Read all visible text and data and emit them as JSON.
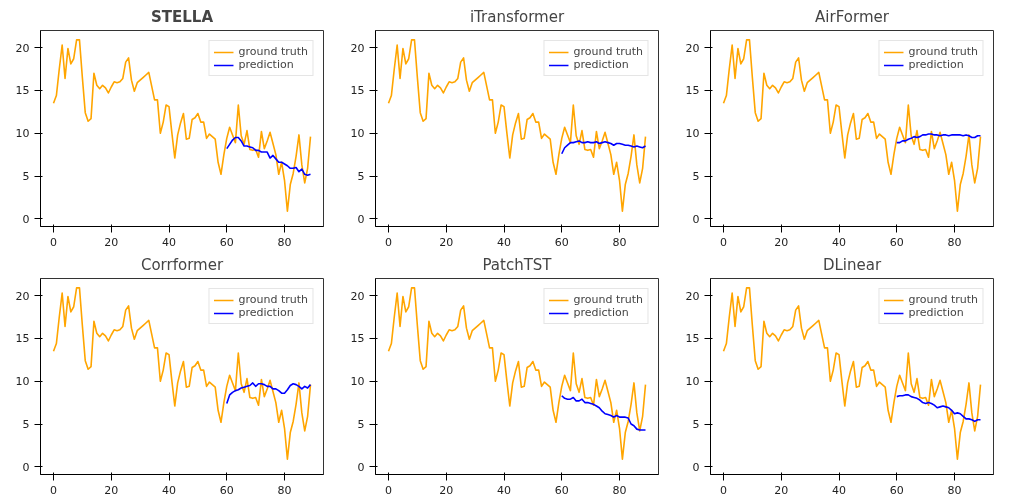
{
  "chart_data": [
    {
      "type": "line",
      "title": "STELLA",
      "xlim": [
        -4.5,
        93.5
      ],
      "ylim": [
        -0.9,
        22
      ],
      "xticks": [
        0,
        20,
        40,
        60,
        80
      ],
      "yticks": [
        0,
        5,
        10,
        15,
        20
      ],
      "grid": false,
      "legend": "top right",
      "series": [
        {
          "name": "ground truth",
          "color": "#ffa500",
          "x": [
            0,
            1,
            2,
            3,
            4,
            5,
            6,
            7,
            8,
            9,
            10,
            11,
            12,
            13,
            14,
            15,
            16,
            17,
            18,
            19,
            20,
            21,
            22,
            23,
            24,
            25,
            26,
            27,
            28,
            29,
            30,
            31,
            32,
            33,
            34,
            35,
            36,
            37,
            38,
            39,
            40,
            41,
            42,
            43,
            44,
            45,
            46,
            47,
            48,
            49,
            50,
            51,
            52,
            53,
            54,
            55,
            56,
            57,
            58,
            59,
            60,
            61,
            62,
            63,
            64,
            65,
            66,
            67,
            68,
            69,
            70,
            71,
            72,
            73,
            74,
            75,
            76,
            77,
            78,
            79,
            80,
            81,
            82,
            83,
            84,
            85,
            86,
            87,
            88,
            89
          ],
          "values": [
            13.5,
            14.4,
            17.5,
            20.3,
            16.4,
            19.9,
            18.1,
            18.7,
            20.9,
            20.9,
            16.5,
            12.4,
            11.4,
            11.7,
            17.0,
            15.6,
            15.2,
            15.6,
            15.3,
            14.7,
            15.4,
            16.0,
            15.9,
            16.0,
            16.4,
            18.3,
            18.8,
            16.2,
            14.9,
            15.9,
            16.2,
            16.5,
            16.8,
            17.1,
            15.5,
            13.9,
            13.9,
            10.0,
            11.3,
            13.3,
            13.1,
            10.0,
            7.1,
            9.8,
            11.2,
            12.3,
            9.3,
            9.4,
            11.6,
            11.8,
            12.3,
            11.3,
            11.3,
            9.4,
            9.9,
            9.6,
            9.3,
            6.6,
            5.2,
            7.5,
            9.4,
            10.7,
            9.8,
            8.9,
            13.3,
            9.7,
            8.7,
            10.3,
            8.1,
            8.0,
            8.1,
            7.2,
            10.2,
            8.2,
            9.1,
            10.1,
            8.8,
            7.5,
            5.2,
            6.6,
            4.5,
            0.9,
            4.0,
            5.3,
            7.3,
            9.8,
            6.3,
            4.2,
            5.9,
            9.6
          ]
        },
        {
          "name": "prediction",
          "color": "#0000ff",
          "x": [
            60,
            61,
            62,
            63,
            64,
            65,
            66,
            67,
            68,
            69,
            70,
            71,
            72,
            73,
            74,
            75,
            76,
            77,
            78,
            79,
            80,
            81,
            82,
            83,
            84,
            85,
            86,
            87,
            88,
            89
          ],
          "values": [
            8.2,
            8.7,
            9.2,
            9.5,
            9.5,
            9.1,
            8.5,
            8.5,
            8.4,
            8.3,
            8.0,
            8.0,
            7.8,
            7.8,
            7.8,
            7.1,
            7.4,
            7.0,
            6.6,
            6.6,
            6.4,
            6.2,
            5.9,
            5.9,
            6.0,
            5.5,
            5.8,
            5.2,
            5.1,
            5.2
          ]
        }
      ]
    },
    {
      "type": "line",
      "title": "iTransformer",
      "xlim": [
        -4.5,
        93.5
      ],
      "ylim": [
        -0.9,
        22
      ],
      "xticks": [
        0,
        20,
        40,
        60,
        80
      ],
      "yticks": [
        0,
        5,
        10,
        15,
        20
      ],
      "grid": false,
      "legend": "top right",
      "series": [
        {
          "name": "ground truth",
          "color": "#ffa500",
          "x": [
            0,
            1,
            2,
            3,
            4,
            5,
            6,
            7,
            8,
            9,
            10,
            11,
            12,
            13,
            14,
            15,
            16,
            17,
            18,
            19,
            20,
            21,
            22,
            23,
            24,
            25,
            26,
            27,
            28,
            29,
            30,
            31,
            32,
            33,
            34,
            35,
            36,
            37,
            38,
            39,
            40,
            41,
            42,
            43,
            44,
            45,
            46,
            47,
            48,
            49,
            50,
            51,
            52,
            53,
            54,
            55,
            56,
            57,
            58,
            59,
            60,
            61,
            62,
            63,
            64,
            65,
            66,
            67,
            68,
            69,
            70,
            71,
            72,
            73,
            74,
            75,
            76,
            77,
            78,
            79,
            80,
            81,
            82,
            83,
            84,
            85,
            86,
            87,
            88,
            89
          ],
          "values": [
            13.5,
            14.4,
            17.5,
            20.3,
            16.4,
            19.9,
            18.1,
            18.7,
            20.9,
            20.9,
            16.5,
            12.4,
            11.4,
            11.7,
            17.0,
            15.6,
            15.2,
            15.6,
            15.3,
            14.7,
            15.4,
            16.0,
            15.9,
            16.0,
            16.4,
            18.3,
            18.8,
            16.2,
            14.9,
            15.9,
            16.2,
            16.5,
            16.8,
            17.1,
            15.5,
            13.9,
            13.9,
            10.0,
            11.3,
            13.3,
            13.1,
            10.0,
            7.1,
            9.8,
            11.2,
            12.3,
            9.3,
            9.4,
            11.6,
            11.8,
            12.3,
            11.3,
            11.3,
            9.4,
            9.9,
            9.6,
            9.3,
            6.6,
            5.2,
            7.5,
            9.4,
            10.7,
            9.8,
            8.9,
            13.3,
            9.7,
            8.7,
            10.3,
            8.1,
            8.0,
            8.1,
            7.2,
            10.2,
            8.2,
            9.1,
            10.1,
            8.8,
            7.5,
            5.2,
            6.6,
            4.5,
            0.9,
            4.0,
            5.3,
            7.3,
            9.8,
            6.3,
            4.2,
            5.9,
            9.6
          ]
        },
        {
          "name": "prediction",
          "color": "#0000ff",
          "x": [
            60,
            61,
            62,
            63,
            64,
            65,
            66,
            67,
            68,
            69,
            70,
            71,
            72,
            73,
            74,
            75,
            76,
            77,
            78,
            79,
            80,
            81,
            82,
            83,
            84,
            85,
            86,
            87,
            88,
            89
          ],
          "values": [
            7.6,
            8.3,
            8.6,
            8.9,
            8.9,
            9.0,
            9.1,
            8.9,
            8.9,
            9.0,
            8.9,
            8.9,
            9.0,
            8.8,
            8.9,
            9.0,
            8.9,
            8.8,
            8.6,
            8.8,
            8.8,
            8.7,
            8.6,
            8.6,
            8.5,
            8.4,
            8.5,
            8.4,
            8.3,
            8.5
          ]
        }
      ]
    },
    {
      "type": "line",
      "title": "AirFormer",
      "xlim": [
        -4.5,
        93.5
      ],
      "ylim": [
        -0.9,
        22
      ],
      "xticks": [
        0,
        20,
        40,
        60,
        80
      ],
      "yticks": [
        0,
        5,
        10,
        15,
        20
      ],
      "grid": false,
      "legend": "top right",
      "series": [
        {
          "name": "ground truth",
          "color": "#ffa500",
          "x": [
            0,
            1,
            2,
            3,
            4,
            5,
            6,
            7,
            8,
            9,
            10,
            11,
            12,
            13,
            14,
            15,
            16,
            17,
            18,
            19,
            20,
            21,
            22,
            23,
            24,
            25,
            26,
            27,
            28,
            29,
            30,
            31,
            32,
            33,
            34,
            35,
            36,
            37,
            38,
            39,
            40,
            41,
            42,
            43,
            44,
            45,
            46,
            47,
            48,
            49,
            50,
            51,
            52,
            53,
            54,
            55,
            56,
            57,
            58,
            59,
            60,
            61,
            62,
            63,
            64,
            65,
            66,
            67,
            68,
            69,
            70,
            71,
            72,
            73,
            74,
            75,
            76,
            77,
            78,
            79,
            80,
            81,
            82,
            83,
            84,
            85,
            86,
            87,
            88,
            89
          ],
          "values": [
            13.5,
            14.4,
            17.5,
            20.3,
            16.4,
            19.9,
            18.1,
            18.7,
            20.9,
            20.9,
            16.5,
            12.4,
            11.4,
            11.7,
            17.0,
            15.6,
            15.2,
            15.6,
            15.3,
            14.7,
            15.4,
            16.0,
            15.9,
            16.0,
            16.4,
            18.3,
            18.8,
            16.2,
            14.9,
            15.9,
            16.2,
            16.5,
            16.8,
            17.1,
            15.5,
            13.9,
            13.9,
            10.0,
            11.3,
            13.3,
            13.1,
            10.0,
            7.1,
            9.8,
            11.2,
            12.3,
            9.3,
            9.4,
            11.6,
            11.8,
            12.3,
            11.3,
            11.3,
            9.4,
            9.9,
            9.6,
            9.3,
            6.6,
            5.2,
            7.5,
            9.4,
            10.7,
            9.8,
            8.9,
            13.3,
            9.7,
            8.7,
            10.3,
            8.1,
            8.0,
            8.1,
            7.2,
            10.2,
            8.2,
            9.1,
            10.1,
            8.8,
            7.5,
            5.2,
            6.6,
            4.5,
            0.9,
            4.0,
            5.3,
            7.3,
            9.8,
            6.3,
            4.2,
            5.9,
            9.6
          ]
        },
        {
          "name": "prediction",
          "color": "#0000ff",
          "x": [
            60,
            61,
            62,
            63,
            64,
            65,
            66,
            67,
            68,
            69,
            70,
            71,
            72,
            73,
            74,
            75,
            76,
            77,
            78,
            79,
            80,
            81,
            82,
            83,
            84,
            85,
            86,
            87,
            88,
            89
          ],
          "values": [
            8.9,
            8.9,
            9.1,
            9.1,
            9.3,
            9.4,
            9.6,
            9.5,
            9.6,
            9.8,
            9.8,
            9.9,
            9.9,
            9.8,
            9.8,
            9.7,
            9.8,
            9.8,
            9.7,
            9.8,
            9.8,
            9.8,
            9.8,
            9.7,
            9.8,
            9.7,
            9.5,
            9.5,
            9.7,
            9.7
          ]
        }
      ]
    },
    {
      "type": "line",
      "title": "Corrformer",
      "xlim": [
        -4.5,
        93.5
      ],
      "ylim": [
        -0.9,
        22
      ],
      "xticks": [
        0,
        20,
        40,
        60,
        80
      ],
      "yticks": [
        0,
        5,
        10,
        15,
        20
      ],
      "grid": false,
      "legend": "top right",
      "series": [
        {
          "name": "ground truth",
          "color": "#ffa500",
          "x": [
            0,
            1,
            2,
            3,
            4,
            5,
            6,
            7,
            8,
            9,
            10,
            11,
            12,
            13,
            14,
            15,
            16,
            17,
            18,
            19,
            20,
            21,
            22,
            23,
            24,
            25,
            26,
            27,
            28,
            29,
            30,
            31,
            32,
            33,
            34,
            35,
            36,
            37,
            38,
            39,
            40,
            41,
            42,
            43,
            44,
            45,
            46,
            47,
            48,
            49,
            50,
            51,
            52,
            53,
            54,
            55,
            56,
            57,
            58,
            59,
            60,
            61,
            62,
            63,
            64,
            65,
            66,
            67,
            68,
            69,
            70,
            71,
            72,
            73,
            74,
            75,
            76,
            77,
            78,
            79,
            80,
            81,
            82,
            83,
            84,
            85,
            86,
            87,
            88,
            89
          ],
          "values": [
            13.5,
            14.4,
            17.5,
            20.3,
            16.4,
            19.9,
            18.1,
            18.7,
            20.9,
            20.9,
            16.5,
            12.4,
            11.4,
            11.7,
            17.0,
            15.6,
            15.2,
            15.6,
            15.3,
            14.7,
            15.4,
            16.0,
            15.9,
            16.0,
            16.4,
            18.3,
            18.8,
            16.2,
            14.9,
            15.9,
            16.2,
            16.5,
            16.8,
            17.1,
            15.5,
            13.9,
            13.9,
            10.0,
            11.3,
            13.3,
            13.1,
            10.0,
            7.1,
            9.8,
            11.2,
            12.3,
            9.3,
            9.4,
            11.6,
            11.8,
            12.3,
            11.3,
            11.3,
            9.4,
            9.9,
            9.6,
            9.3,
            6.6,
            5.2,
            7.5,
            9.4,
            10.7,
            9.8,
            8.9,
            13.3,
            9.7,
            8.7,
            10.3,
            8.1,
            8.0,
            8.1,
            7.2,
            10.2,
            8.2,
            9.1,
            10.1,
            8.8,
            7.5,
            5.2,
            6.6,
            4.5,
            0.9,
            4.0,
            5.3,
            7.3,
            9.8,
            6.3,
            4.2,
            5.9,
            9.6
          ]
        },
        {
          "name": "prediction",
          "color": "#0000ff",
          "x": [
            60,
            61,
            62,
            63,
            64,
            65,
            66,
            67,
            68,
            69,
            70,
            71,
            72,
            73,
            74,
            75,
            76,
            77,
            78,
            79,
            80,
            81,
            82,
            83,
            84,
            85,
            86,
            87,
            88,
            89
          ],
          "values": [
            7.4,
            8.4,
            8.7,
            8.9,
            9.0,
            9.2,
            9.3,
            9.4,
            9.5,
            9.8,
            9.4,
            9.7,
            9.7,
            9.6,
            9.4,
            9.4,
            9.1,
            9.1,
            8.9,
            8.6,
            8.6,
            9.0,
            9.5,
            9.7,
            9.6,
            9.4,
            9.1,
            9.4,
            9.2,
            9.6
          ]
        }
      ]
    },
    {
      "type": "line",
      "title": "PatchTST",
      "xlim": [
        -4.5,
        93.5
      ],
      "ylim": [
        -0.9,
        22
      ],
      "xticks": [
        0,
        20,
        40,
        60,
        80
      ],
      "yticks": [
        0,
        5,
        10,
        15,
        20
      ],
      "grid": false,
      "legend": "top right",
      "series": [
        {
          "name": "ground truth",
          "color": "#ffa500",
          "x": [
            0,
            1,
            2,
            3,
            4,
            5,
            6,
            7,
            8,
            9,
            10,
            11,
            12,
            13,
            14,
            15,
            16,
            17,
            18,
            19,
            20,
            21,
            22,
            23,
            24,
            25,
            26,
            27,
            28,
            29,
            30,
            31,
            32,
            33,
            34,
            35,
            36,
            37,
            38,
            39,
            40,
            41,
            42,
            43,
            44,
            45,
            46,
            47,
            48,
            49,
            50,
            51,
            52,
            53,
            54,
            55,
            56,
            57,
            58,
            59,
            60,
            61,
            62,
            63,
            64,
            65,
            66,
            67,
            68,
            69,
            70,
            71,
            72,
            73,
            74,
            75,
            76,
            77,
            78,
            79,
            80,
            81,
            82,
            83,
            84,
            85,
            86,
            87,
            88,
            89
          ],
          "values": [
            13.5,
            14.4,
            17.5,
            20.3,
            16.4,
            19.9,
            18.1,
            18.7,
            20.9,
            20.9,
            16.5,
            12.4,
            11.4,
            11.7,
            17.0,
            15.6,
            15.2,
            15.6,
            15.3,
            14.7,
            15.4,
            16.0,
            15.9,
            16.0,
            16.4,
            18.3,
            18.8,
            16.2,
            14.9,
            15.9,
            16.2,
            16.5,
            16.8,
            17.1,
            15.5,
            13.9,
            13.9,
            10.0,
            11.3,
            13.3,
            13.1,
            10.0,
            7.1,
            9.8,
            11.2,
            12.3,
            9.3,
            9.4,
            11.6,
            11.8,
            12.3,
            11.3,
            11.3,
            9.4,
            9.9,
            9.6,
            9.3,
            6.6,
            5.2,
            7.5,
            9.4,
            10.7,
            9.8,
            8.9,
            13.3,
            9.7,
            8.7,
            10.3,
            8.1,
            8.0,
            8.1,
            7.2,
            10.2,
            8.2,
            9.1,
            10.1,
            8.8,
            7.5,
            5.2,
            6.6,
            4.5,
            0.9,
            4.0,
            5.3,
            7.3,
            9.8,
            6.3,
            4.2,
            5.9,
            9.6
          ]
        },
        {
          "name": "prediction",
          "color": "#0000ff",
          "x": [
            60,
            61,
            62,
            63,
            64,
            65,
            66,
            67,
            68,
            69,
            70,
            71,
            72,
            73,
            74,
            75,
            76,
            77,
            78,
            79,
            80,
            81,
            82,
            83,
            84,
            85,
            86,
            87,
            88,
            89
          ],
          "values": [
            8.3,
            8.0,
            7.9,
            7.9,
            8.1,
            7.7,
            7.7,
            7.9,
            7.5,
            7.5,
            7.4,
            7.3,
            7.1,
            6.9,
            6.5,
            6.2,
            6.1,
            6.0,
            5.8,
            6.0,
            5.8,
            5.8,
            5.8,
            5.7,
            5.0,
            4.8,
            4.4,
            4.3,
            4.3,
            4.3
          ]
        }
      ]
    },
    {
      "type": "line",
      "title": "DLinear",
      "xlim": [
        -4.5,
        93.5
      ],
      "ylim": [
        -0.9,
        22
      ],
      "xticks": [
        0,
        20,
        40,
        60,
        80
      ],
      "yticks": [
        0,
        5,
        10,
        15,
        20
      ],
      "grid": false,
      "legend": "top right",
      "series": [
        {
          "name": "ground truth",
          "color": "#ffa500",
          "x": [
            0,
            1,
            2,
            3,
            4,
            5,
            6,
            7,
            8,
            9,
            10,
            11,
            12,
            13,
            14,
            15,
            16,
            17,
            18,
            19,
            20,
            21,
            22,
            23,
            24,
            25,
            26,
            27,
            28,
            29,
            30,
            31,
            32,
            33,
            34,
            35,
            36,
            37,
            38,
            39,
            40,
            41,
            42,
            43,
            44,
            45,
            46,
            47,
            48,
            49,
            50,
            51,
            52,
            53,
            54,
            55,
            56,
            57,
            58,
            59,
            60,
            61,
            62,
            63,
            64,
            65,
            66,
            67,
            68,
            69,
            70,
            71,
            72,
            73,
            74,
            75,
            76,
            77,
            78,
            79,
            80,
            81,
            82,
            83,
            84,
            85,
            86,
            87,
            88,
            89
          ],
          "values": [
            13.5,
            14.4,
            17.5,
            20.3,
            16.4,
            19.9,
            18.1,
            18.7,
            20.9,
            20.9,
            16.5,
            12.4,
            11.4,
            11.7,
            17.0,
            15.6,
            15.2,
            15.6,
            15.3,
            14.7,
            15.4,
            16.0,
            15.9,
            16.0,
            16.4,
            18.3,
            18.8,
            16.2,
            14.9,
            15.9,
            16.2,
            16.5,
            16.8,
            17.1,
            15.5,
            13.9,
            13.9,
            10.0,
            11.3,
            13.3,
            13.1,
            10.0,
            7.1,
            9.8,
            11.2,
            12.3,
            9.3,
            9.4,
            11.6,
            11.8,
            12.3,
            11.3,
            11.3,
            9.4,
            9.9,
            9.6,
            9.3,
            6.6,
            5.2,
            7.5,
            9.4,
            10.7,
            9.8,
            8.9,
            13.3,
            9.7,
            8.7,
            10.3,
            8.1,
            8.0,
            8.1,
            7.2,
            10.2,
            8.2,
            9.1,
            10.1,
            8.8,
            7.5,
            5.2,
            6.6,
            4.5,
            0.9,
            4.0,
            5.3,
            7.3,
            9.8,
            6.3,
            4.2,
            5.9,
            9.6
          ]
        },
        {
          "name": "prediction",
          "color": "#0000ff",
          "x": [
            60,
            61,
            62,
            63,
            64,
            65,
            66,
            67,
            68,
            69,
            70,
            71,
            72,
            73,
            74,
            75,
            76,
            77,
            78,
            79,
            80,
            81,
            82,
            83,
            84,
            85,
            86,
            87,
            88,
            89
          ],
          "values": [
            8.2,
            8.3,
            8.3,
            8.4,
            8.4,
            8.2,
            8.1,
            8.0,
            7.8,
            7.5,
            7.4,
            7.5,
            7.4,
            7.2,
            6.9,
            7.0,
            7.1,
            7.0,
            6.9,
            6.6,
            6.2,
            6.3,
            6.2,
            5.9,
            5.6,
            5.6,
            5.5,
            5.3,
            5.5,
            5.5
          ]
        }
      ]
    }
  ]
}
